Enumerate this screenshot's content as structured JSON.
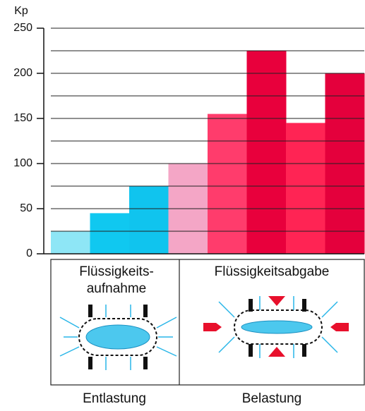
{
  "chart_data": {
    "type": "bar",
    "y_label": "Kp",
    "categories": [
      null,
      null,
      null,
      null,
      null,
      null,
      null,
      null
    ],
    "values": [
      25,
      45,
      75,
      100,
      155,
      225,
      145,
      200
    ],
    "colors": [
      "#8ee6f6",
      "#10c8f0",
      "#10c4ee",
      "#f4a6c6",
      "#ff3c6c",
      "#e8003c",
      "#ff2454",
      "#e4003c"
    ],
    "ylim": [
      0,
      250
    ],
    "yticks": [
      0,
      50,
      100,
      150,
      200,
      250
    ],
    "minor_yticks": [
      25,
      75,
      125,
      175,
      225
    ],
    "grid": true
  },
  "panels": [
    {
      "title_lines": [
        "Flüssigkeits-",
        "aufnahme"
      ],
      "caption": "Entlastung"
    },
    {
      "title_lines": [
        "Flüssigkeitsabgabe"
      ],
      "caption": "Belastung"
    }
  ]
}
